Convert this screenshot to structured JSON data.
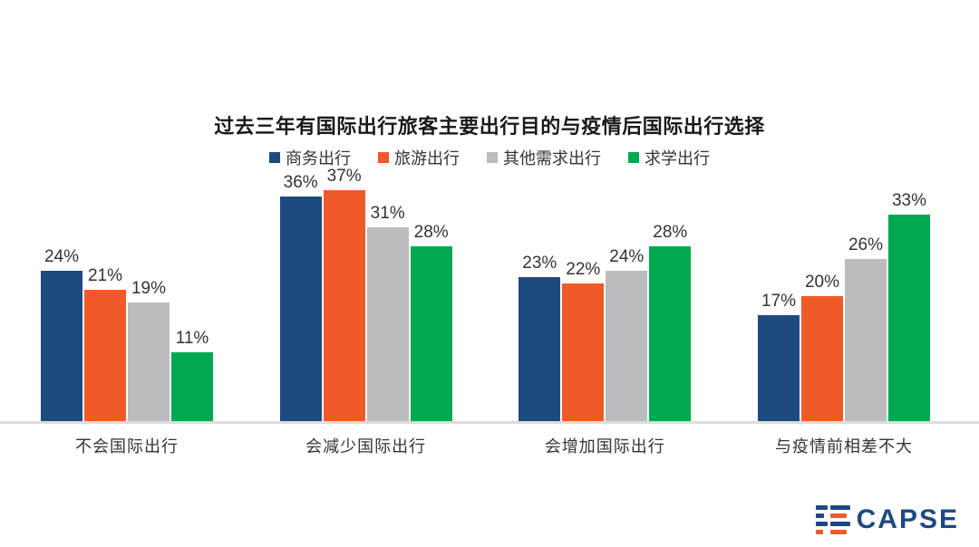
{
  "chart_data": {
    "type": "bar",
    "title": "过去三年有国际出行旅客主要出行目的与疫情后国际出行选择",
    "categories": [
      "不会国际出行",
      "会减少国际出行",
      "会增加国际出行",
      "与疫情前相差不大"
    ],
    "series": [
      {
        "name": "商务出行",
        "color": "#1e4b7f",
        "values": [
          24,
          36,
          23,
          17
        ]
      },
      {
        "name": "旅游出行",
        "color": "#f05a28",
        "values": [
          21,
          37,
          22,
          20
        ]
      },
      {
        "name": "其他需求出行",
        "color": "#bcbcbe",
        "values": [
          19,
          31,
          24,
          26
        ]
      },
      {
        "name": "求学出行",
        "color": "#00a94f",
        "values": [
          11,
          28,
          28,
          33
        ]
      }
    ],
    "value_suffix": "%",
    "ylim": [
      0,
      40
    ],
    "grid": false,
    "legend_position": "top",
    "xlabel": "",
    "ylabel": ""
  },
  "logo": {
    "text": "CAPSE"
  },
  "colors": {
    "axis_line": "#dcdcdc",
    "label_text": "#333333",
    "title_text": "#1a1a1a",
    "logo_navy": "#1f4880",
    "logo_orange": "#f05a28"
  }
}
